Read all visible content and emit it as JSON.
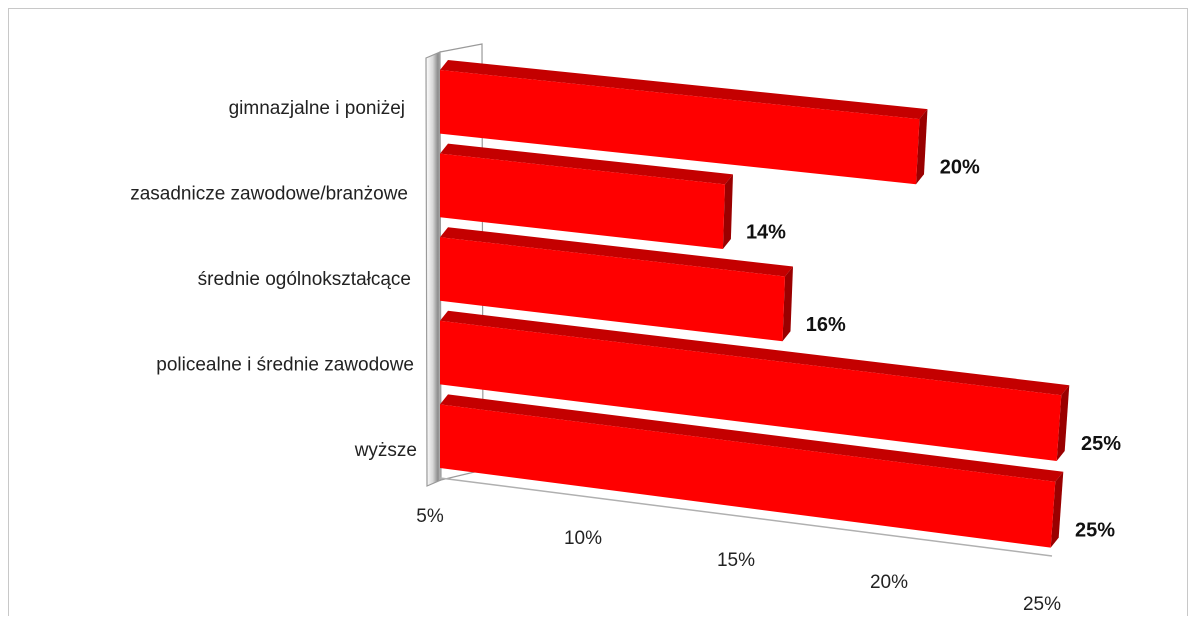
{
  "chart_data": {
    "type": "bar",
    "orientation": "horizontal",
    "style": "3d",
    "title": "",
    "xlabel": "",
    "ylabel": "",
    "categories": [
      "gimnazjalne i poniżej",
      "zasadnicze zawodowe/branżowe",
      "średnie ogólnokształcące",
      "policealne i średnie zawodowe",
      "wyższe"
    ],
    "values": [
      20,
      14,
      16,
      25,
      25
    ],
    "data_labels": [
      "20%",
      "14%",
      "16%",
      "25%",
      "25%"
    ],
    "xlim": [
      5,
      25
    ],
    "x_ticks": [
      "5%",
      "10%",
      "15%",
      "20%",
      "25%"
    ],
    "grid": false,
    "legend": "none",
    "colors": {
      "bar_front": "#ff0000",
      "bar_top": "#c40000",
      "bar_side": "#9a0000",
      "wall": "#9a9a9a",
      "axis": "#b0b0b0"
    }
  }
}
